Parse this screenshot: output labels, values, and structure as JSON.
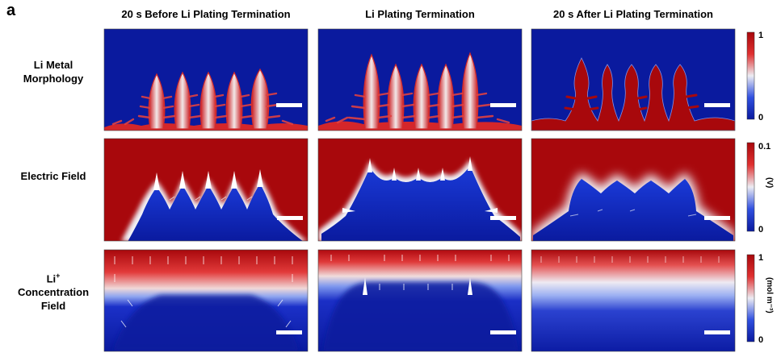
{
  "panel_letter": "a",
  "columns": [
    {
      "title": "20 s Before Li Plating Termination"
    },
    {
      "title": "Li Plating Termination"
    },
    {
      "title": "20 s After Li Plating Termination"
    }
  ],
  "rows": [
    {
      "label_line1": "Li Metal",
      "label_line2": "Morphology",
      "label_line3": ""
    },
    {
      "label_line1": "Electric Field",
      "label_line2": "",
      "label_line3": ""
    },
    {
      "label_line1": "Li",
      "label_sup": "+",
      "label_line2": "Concentration",
      "label_line3": "Field"
    }
  ],
  "colorbars": [
    {
      "max": "1",
      "min": "0",
      "unit": ""
    },
    {
      "max": "0.1",
      "min": "0",
      "unit": "(V)"
    },
    {
      "max": "1",
      "min": "0",
      "unit": "(mol m⁻³)"
    }
  ],
  "colors": {
    "low": "#0a1a9e",
    "mid": "#e8e8ee",
    "high": "#a8080c"
  },
  "icons": [
    "scale-bar",
    "field-arrow"
  ]
}
